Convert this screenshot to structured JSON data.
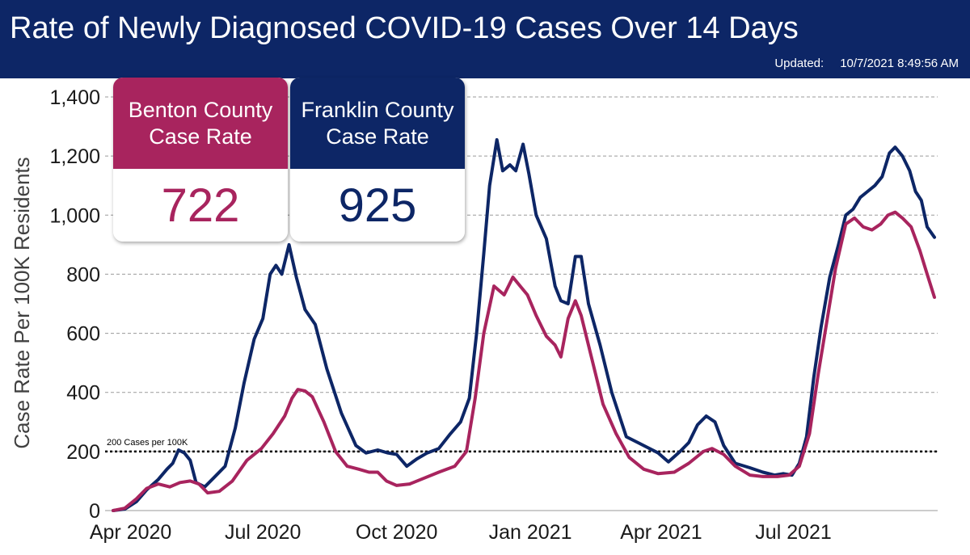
{
  "header": {
    "title": "Rate of Newly Diagnosed COVID-19 Cases Over 14 Days",
    "updated_label": "Updated:",
    "updated_value": "10/7/2021 8:49:56 AM"
  },
  "cards": [
    {
      "label": "Benton County Case Rate",
      "value": "722",
      "color": "#a8245e"
    },
    {
      "label": "Franklin County Case Rate",
      "value": "925",
      "color": "#0d2666"
    }
  ],
  "chart_data": {
    "type": "line",
    "xlabel": "",
    "ylabel": "Case Rate Per 100K Residents",
    "ylim": [
      0,
      1400
    ],
    "yticks": [
      0,
      200,
      400,
      600,
      800,
      1000,
      1200,
      1400
    ],
    "ytick_labels": [
      "0",
      "200",
      "400",
      "600",
      "800",
      "1,000",
      "1,200",
      "1,400"
    ],
    "xlim": [
      "2020-03-20",
      "2021-10-06"
    ],
    "xticks": [
      {
        "date": "2020-04-01",
        "label": "Apr 2020"
      },
      {
        "date": "2020-07-01",
        "label": "Jul 2020"
      },
      {
        "date": "2020-10-01",
        "label": "Oct 2020"
      },
      {
        "date": "2021-01-01",
        "label": "Jan 2021"
      },
      {
        "date": "2021-04-01",
        "label": "Apr 2021"
      },
      {
        "date": "2021-07-01",
        "label": "Jul 2021"
      }
    ],
    "grid": "horizontal dashed",
    "reference_line": {
      "y": 200,
      "label": "200 Cases per 100K",
      "style": "dotted",
      "color": "#000000"
    },
    "series": [
      {
        "name": "Franklin County Case Rate",
        "color": "#0d2666",
        "points": [
          [
            "2020-03-20",
            0
          ],
          [
            "2020-03-28",
            5
          ],
          [
            "2020-04-05",
            30
          ],
          [
            "2020-04-12",
            70
          ],
          [
            "2020-04-20",
            105
          ],
          [
            "2020-04-26",
            140
          ],
          [
            "2020-04-30",
            160
          ],
          [
            "2020-05-04",
            205
          ],
          [
            "2020-05-08",
            195
          ],
          [
            "2020-05-12",
            170
          ],
          [
            "2020-05-16",
            95
          ],
          [
            "2020-05-22",
            80
          ],
          [
            "2020-05-28",
            110
          ],
          [
            "2020-06-05",
            150
          ],
          [
            "2020-06-12",
            280
          ],
          [
            "2020-06-18",
            430
          ],
          [
            "2020-06-25",
            580
          ],
          [
            "2020-07-01",
            650
          ],
          [
            "2020-07-06",
            800
          ],
          [
            "2020-07-10",
            830
          ],
          [
            "2020-07-14",
            800
          ],
          [
            "2020-07-19",
            900
          ],
          [
            "2020-07-24",
            790
          ],
          [
            "2020-07-30",
            680
          ],
          [
            "2020-08-06",
            630
          ],
          [
            "2020-08-14",
            480
          ],
          [
            "2020-08-24",
            330
          ],
          [
            "2020-09-03",
            220
          ],
          [
            "2020-09-10",
            195
          ],
          [
            "2020-09-18",
            205
          ],
          [
            "2020-09-25",
            195
          ],
          [
            "2020-10-01",
            190
          ],
          [
            "2020-10-08",
            150
          ],
          [
            "2020-10-15",
            175
          ],
          [
            "2020-10-22",
            195
          ],
          [
            "2020-10-30",
            210
          ],
          [
            "2020-11-07",
            260
          ],
          [
            "2020-11-14",
            300
          ],
          [
            "2020-11-20",
            380
          ],
          [
            "2020-11-25",
            600
          ],
          [
            "2020-11-30",
            870
          ],
          [
            "2020-12-04",
            1100
          ],
          [
            "2020-12-09",
            1255
          ],
          [
            "2020-12-13",
            1150
          ],
          [
            "2020-12-18",
            1170
          ],
          [
            "2020-12-22",
            1150
          ],
          [
            "2020-12-27",
            1240
          ],
          [
            "2020-12-31",
            1140
          ],
          [
            "2021-01-05",
            1000
          ],
          [
            "2021-01-12",
            920
          ],
          [
            "2021-01-18",
            760
          ],
          [
            "2021-01-22",
            710
          ],
          [
            "2021-01-27",
            700
          ],
          [
            "2021-02-01",
            860
          ],
          [
            "2021-02-05",
            860
          ],
          [
            "2021-02-10",
            700
          ],
          [
            "2021-02-18",
            560
          ],
          [
            "2021-02-26",
            400
          ],
          [
            "2021-03-08",
            250
          ],
          [
            "2021-03-16",
            230
          ],
          [
            "2021-03-22",
            215
          ],
          [
            "2021-03-30",
            195
          ],
          [
            "2021-04-06",
            165
          ],
          [
            "2021-04-14",
            200
          ],
          [
            "2021-04-20",
            230
          ],
          [
            "2021-04-26",
            290
          ],
          [
            "2021-05-02",
            320
          ],
          [
            "2021-05-08",
            300
          ],
          [
            "2021-05-14",
            220
          ],
          [
            "2021-05-22",
            160
          ],
          [
            "2021-06-01",
            145
          ],
          [
            "2021-06-10",
            130
          ],
          [
            "2021-06-18",
            120
          ],
          [
            "2021-06-24",
            125
          ],
          [
            "2021-06-30",
            120
          ],
          [
            "2021-07-05",
            160
          ],
          [
            "2021-07-10",
            250
          ],
          [
            "2021-07-15",
            450
          ],
          [
            "2021-07-20",
            620
          ],
          [
            "2021-07-26",
            790
          ],
          [
            "2021-08-01",
            900
          ],
          [
            "2021-08-06",
            1000
          ],
          [
            "2021-08-11",
            1020
          ],
          [
            "2021-08-16",
            1060
          ],
          [
            "2021-08-21",
            1080
          ],
          [
            "2021-08-26",
            1100
          ],
          [
            "2021-08-31",
            1130
          ],
          [
            "2021-09-05",
            1210
          ],
          [
            "2021-09-09",
            1230
          ],
          [
            "2021-09-14",
            1200
          ],
          [
            "2021-09-19",
            1150
          ],
          [
            "2021-09-23",
            1080
          ],
          [
            "2021-09-27",
            1050
          ],
          [
            "2021-10-01",
            960
          ],
          [
            "2021-10-06",
            925
          ]
        ]
      },
      {
        "name": "Benton County Case Rate",
        "color": "#a8245e",
        "points": [
          [
            "2020-03-20",
            0
          ],
          [
            "2020-03-28",
            8
          ],
          [
            "2020-04-05",
            40
          ],
          [
            "2020-04-12",
            75
          ],
          [
            "2020-04-20",
            90
          ],
          [
            "2020-04-28",
            80
          ],
          [
            "2020-05-05",
            95
          ],
          [
            "2020-05-12",
            100
          ],
          [
            "2020-05-18",
            90
          ],
          [
            "2020-05-24",
            60
          ],
          [
            "2020-06-01",
            65
          ],
          [
            "2020-06-10",
            100
          ],
          [
            "2020-06-20",
            170
          ],
          [
            "2020-06-30",
            210
          ],
          [
            "2020-07-08",
            260
          ],
          [
            "2020-07-16",
            320
          ],
          [
            "2020-07-21",
            380
          ],
          [
            "2020-07-25",
            410
          ],
          [
            "2020-07-30",
            405
          ],
          [
            "2020-08-04",
            385
          ],
          [
            "2020-08-12",
            300
          ],
          [
            "2020-08-20",
            200
          ],
          [
            "2020-08-28",
            150
          ],
          [
            "2020-09-05",
            140
          ],
          [
            "2020-09-12",
            130
          ],
          [
            "2020-09-18",
            130
          ],
          [
            "2020-09-24",
            100
          ],
          [
            "2020-10-01",
            85
          ],
          [
            "2020-10-10",
            90
          ],
          [
            "2020-10-20",
            110
          ],
          [
            "2020-10-30",
            130
          ],
          [
            "2020-11-10",
            150
          ],
          [
            "2020-11-18",
            200
          ],
          [
            "2020-11-24",
            380
          ],
          [
            "2020-11-30",
            600
          ],
          [
            "2020-12-07",
            760
          ],
          [
            "2020-12-14",
            730
          ],
          [
            "2020-12-20",
            790
          ],
          [
            "2020-12-25",
            760
          ],
          [
            "2020-12-30",
            730
          ],
          [
            "2021-01-05",
            660
          ],
          [
            "2021-01-12",
            590
          ],
          [
            "2021-01-18",
            560
          ],
          [
            "2021-01-22",
            520
          ],
          [
            "2021-01-27",
            650
          ],
          [
            "2021-02-01",
            710
          ],
          [
            "2021-02-05",
            660
          ],
          [
            "2021-02-12",
            520
          ],
          [
            "2021-02-20",
            360
          ],
          [
            "2021-03-01",
            260
          ],
          [
            "2021-03-10",
            180
          ],
          [
            "2021-03-20",
            140
          ],
          [
            "2021-03-30",
            125
          ],
          [
            "2021-04-10",
            130
          ],
          [
            "2021-04-20",
            160
          ],
          [
            "2021-04-30",
            200
          ],
          [
            "2021-05-06",
            210
          ],
          [
            "2021-05-14",
            190
          ],
          [
            "2021-05-22",
            150
          ],
          [
            "2021-06-01",
            120
          ],
          [
            "2021-06-10",
            115
          ],
          [
            "2021-06-20",
            115
          ],
          [
            "2021-06-28",
            120
          ],
          [
            "2021-07-05",
            150
          ],
          [
            "2021-07-12",
            260
          ],
          [
            "2021-07-18",
            460
          ],
          [
            "2021-07-24",
            640
          ],
          [
            "2021-07-30",
            820
          ],
          [
            "2021-08-06",
            970
          ],
          [
            "2021-08-12",
            990
          ],
          [
            "2021-08-18",
            960
          ],
          [
            "2021-08-24",
            950
          ],
          [
            "2021-08-30",
            970
          ],
          [
            "2021-09-04",
            1000
          ],
          [
            "2021-09-09",
            1010
          ],
          [
            "2021-09-14",
            990
          ],
          [
            "2021-09-20",
            960
          ],
          [
            "2021-09-26",
            880
          ],
          [
            "2021-10-01",
            800
          ],
          [
            "2021-10-06",
            722
          ]
        ]
      }
    ]
  }
}
